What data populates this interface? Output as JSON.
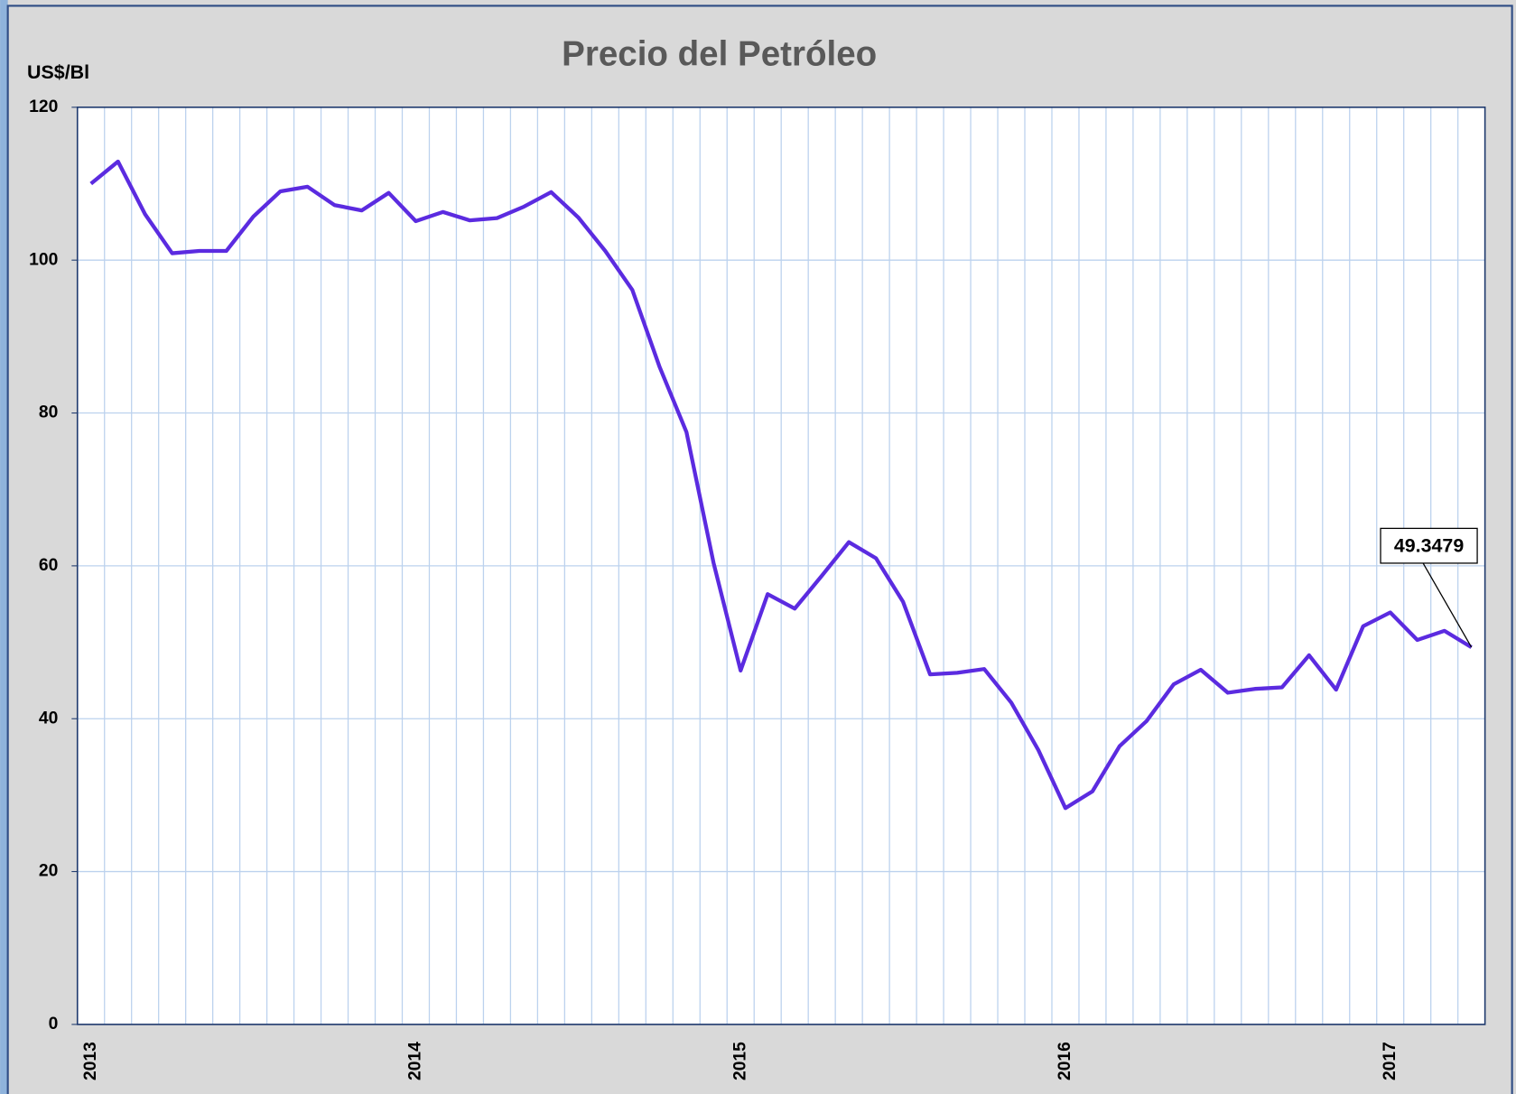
{
  "chart_data": {
    "type": "line",
    "title": "Precio del Petróleo",
    "ylabel": "US$/Bl",
    "categories": [
      "2013",
      null,
      null,
      null,
      null,
      null,
      null,
      null,
      null,
      null,
      null,
      null,
      "2014",
      null,
      null,
      null,
      null,
      null,
      null,
      null,
      null,
      null,
      null,
      null,
      "2015",
      null,
      null,
      null,
      null,
      null,
      null,
      null,
      null,
      null,
      null,
      null,
      "2016",
      null,
      null,
      null,
      null,
      null,
      null,
      null,
      null,
      null,
      null,
      null,
      "2017",
      null,
      null,
      null
    ],
    "series": [
      {
        "name": "Precio del Petróleo",
        "color": "#5b2be0",
        "values": [
          110.0,
          112.9,
          106.0,
          100.9,
          101.2,
          101.2,
          105.7,
          109.0,
          109.6,
          107.2,
          106.5,
          108.8,
          105.1,
          106.3,
          105.2,
          105.5,
          107.0,
          108.9,
          105.6,
          101.2,
          96.1,
          86.1,
          77.5,
          60.4,
          46.3,
          56.3,
          54.4,
          58.7,
          63.1,
          61.0,
          55.3,
          45.8,
          46.0,
          46.5,
          42.1,
          35.9,
          28.3,
          30.5,
          36.4,
          39.7,
          44.5,
          46.4,
          43.4,
          43.9,
          44.1,
          48.3,
          43.8,
          52.1,
          53.9,
          50.3,
          51.5,
          49.3479
        ],
        "value_labels": [
          null,
          null,
          null,
          null,
          null,
          null,
          null,
          null,
          null,
          null,
          null,
          null,
          null,
          null,
          null,
          null,
          null,
          null,
          null,
          null,
          null,
          null,
          null,
          null,
          null,
          null,
          null,
          null,
          null,
          null,
          null,
          null,
          null,
          null,
          null,
          null,
          null,
          null,
          null,
          null,
          null,
          null,
          null,
          null,
          null,
          null,
          null,
          null,
          null,
          null,
          null,
          "49.3479"
        ]
      }
    ],
    "ylim": [
      0,
      120
    ],
    "yticks": [
      0,
      20,
      40,
      60,
      80,
      100,
      120
    ],
    "grid": true
  }
}
